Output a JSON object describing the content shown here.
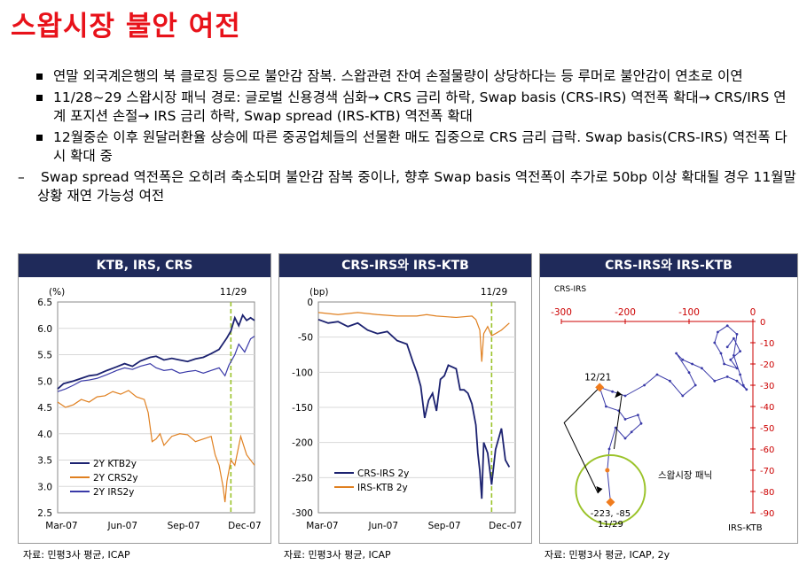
{
  "slide": {
    "title": "스왑시장 불안 여전",
    "bullets": [
      {
        "type": "square",
        "text": "연말 외국계은행의 북 클로징 등으로 불안감 잠복. 스왑관련 잔여 손절물량이 상당하다는 등 루머로 불안감이 연초로 이연"
      },
      {
        "type": "square",
        "text": "11/28~29 스왑시장 패닉 경로: 글로벌 신용경색 심화→ CRS 금리 하락, Swap basis (CRS-IRS) 역전폭 확대→ CRS/IRS 연계 포지션 손절→ IRS 금리 하락, Swap spread (IRS-KTB) 역전폭 확대"
      },
      {
        "type": "square",
        "text": "12월중순 이후 원달러환율 상승에 따른 중공업체들의 선물환 매도 집중으로 CRS 금리 급락. Swap basis(CRS-IRS) 역전폭 다시 확대 중"
      },
      {
        "type": "dash",
        "text": "Swap spread 역전폭은 오히려 축소되며 불안감 잠복 중이나, 향후 Swap basis 역전폭이 추가로 50bp 이상 확대될 경우 11월말 상황 재연 가능성 여전"
      }
    ]
  },
  "sources": [
    "자료: 민평3사 평균, ICAP",
    "자료: 민평3사 평균, ICAP",
    "자료: 민평3사 평균, ICAP, 2y"
  ],
  "chart_data": [
    {
      "type": "line",
      "title": "KTB, IRS, CRS",
      "unit_label": "(%)",
      "marker_label": "11/29",
      "ylim": [
        2.5,
        6.5
      ],
      "yticks": [
        "6.5",
        "6.0",
        "5.5",
        "5.0",
        "4.5",
        "4.0",
        "3.5",
        "3.0",
        "2.5"
      ],
      "xlabels": [
        "Mar-07",
        "Jun-07",
        "Sep-07",
        "Dec-07"
      ],
      "series": [
        {
          "name": "2Y KTB2y",
          "color": "#1c2270",
          "values": [
            [
              0,
              4.85
            ],
            [
              0.03,
              4.95
            ],
            [
              0.08,
              5.0
            ],
            [
              0.12,
              5.05
            ],
            [
              0.16,
              5.1
            ],
            [
              0.2,
              5.12
            ],
            [
              0.25,
              5.2
            ],
            [
              0.3,
              5.27
            ],
            [
              0.34,
              5.33
            ],
            [
              0.38,
              5.28
            ],
            [
              0.42,
              5.38
            ],
            [
              0.47,
              5.45
            ],
            [
              0.5,
              5.47
            ],
            [
              0.54,
              5.4
            ],
            [
              0.58,
              5.43
            ],
            [
              0.62,
              5.4
            ],
            [
              0.66,
              5.37
            ],
            [
              0.7,
              5.42
            ],
            [
              0.74,
              5.45
            ],
            [
              0.78,
              5.52
            ],
            [
              0.82,
              5.6
            ],
            [
              0.86,
              5.82
            ],
            [
              0.88,
              5.95
            ],
            [
              0.9,
              6.2
            ],
            [
              0.92,
              6.05
            ],
            [
              0.94,
              6.25
            ],
            [
              0.96,
              6.15
            ],
            [
              0.98,
              6.2
            ],
            [
              1.0,
              6.15
            ]
          ]
        },
        {
          "name": "2Y CRS2y",
          "color": "#e08020",
          "values": [
            [
              0,
              4.6
            ],
            [
              0.04,
              4.5
            ],
            [
              0.08,
              4.55
            ],
            [
              0.12,
              4.65
            ],
            [
              0.16,
              4.6
            ],
            [
              0.2,
              4.7
            ],
            [
              0.24,
              4.72
            ],
            [
              0.28,
              4.8
            ],
            [
              0.32,
              4.75
            ],
            [
              0.36,
              4.82
            ],
            [
              0.4,
              4.7
            ],
            [
              0.44,
              4.65
            ],
            [
              0.46,
              4.4
            ],
            [
              0.48,
              3.85
            ],
            [
              0.5,
              3.9
            ],
            [
              0.52,
              4.0
            ],
            [
              0.54,
              3.78
            ],
            [
              0.58,
              3.95
            ],
            [
              0.62,
              4.0
            ],
            [
              0.66,
              3.98
            ],
            [
              0.7,
              3.85
            ],
            [
              0.74,
              3.9
            ],
            [
              0.78,
              3.95
            ],
            [
              0.8,
              3.6
            ],
            [
              0.82,
              3.4
            ],
            [
              0.84,
              3.0
            ],
            [
              0.85,
              2.7
            ],
            [
              0.86,
              3.1
            ],
            [
              0.88,
              3.5
            ],
            [
              0.9,
              3.4
            ],
            [
              0.93,
              3.95
            ],
            [
              0.96,
              3.6
            ],
            [
              1.0,
              3.4
            ]
          ]
        },
        {
          "name": "2Y IRS2y",
          "color": "#3a3aa8",
          "values": [
            [
              0,
              4.8
            ],
            [
              0.04,
              4.85
            ],
            [
              0.08,
              4.92
            ],
            [
              0.12,
              5.0
            ],
            [
              0.16,
              5.02
            ],
            [
              0.2,
              5.05
            ],
            [
              0.25,
              5.12
            ],
            [
              0.3,
              5.2
            ],
            [
              0.34,
              5.25
            ],
            [
              0.38,
              5.22
            ],
            [
              0.42,
              5.28
            ],
            [
              0.47,
              5.33
            ],
            [
              0.5,
              5.25
            ],
            [
              0.54,
              5.2
            ],
            [
              0.58,
              5.22
            ],
            [
              0.62,
              5.15
            ],
            [
              0.66,
              5.18
            ],
            [
              0.7,
              5.2
            ],
            [
              0.74,
              5.15
            ],
            [
              0.78,
              5.2
            ],
            [
              0.82,
              5.25
            ],
            [
              0.85,
              5.1
            ],
            [
              0.87,
              5.3
            ],
            [
              0.9,
              5.5
            ],
            [
              0.92,
              5.7
            ],
            [
              0.95,
              5.55
            ],
            [
              0.98,
              5.8
            ],
            [
              1.0,
              5.85
            ]
          ]
        }
      ]
    },
    {
      "type": "line",
      "title": "CRS-IRS와 IRS-KTB",
      "unit_label": "(bp)",
      "marker_label": "11/29",
      "ylim": [
        -300,
        0
      ],
      "yticks": [
        "0",
        "-50",
        "-100",
        "-150",
        "-200",
        "-250",
        "-300"
      ],
      "xlabels": [
        "Mar-07",
        "Jun-07",
        "Sep-07",
        "Dec-07"
      ],
      "series": [
        {
          "name": "CRS-IRS 2y",
          "color": "#1c2270",
          "values": [
            [
              0,
              -25
            ],
            [
              0.05,
              -30
            ],
            [
              0.1,
              -28
            ],
            [
              0.15,
              -35
            ],
            [
              0.2,
              -30
            ],
            [
              0.25,
              -40
            ],
            [
              0.3,
              -45
            ],
            [
              0.35,
              -42
            ],
            [
              0.4,
              -55
            ],
            [
              0.45,
              -60
            ],
            [
              0.48,
              -85
            ],
            [
              0.5,
              -100
            ],
            [
              0.52,
              -120
            ],
            [
              0.54,
              -165
            ],
            [
              0.56,
              -140
            ],
            [
              0.58,
              -130
            ],
            [
              0.6,
              -155
            ],
            [
              0.62,
              -110
            ],
            [
              0.64,
              -105
            ],
            [
              0.66,
              -90
            ],
            [
              0.7,
              -95
            ],
            [
              0.72,
              -125
            ],
            [
              0.74,
              -125
            ],
            [
              0.76,
              -130
            ],
            [
              0.78,
              -145
            ],
            [
              0.8,
              -175
            ],
            [
              0.81,
              -215
            ],
            [
              0.82,
              -240
            ],
            [
              0.83,
              -280
            ],
            [
              0.84,
              -200
            ],
            [
              0.86,
              -215
            ],
            [
              0.88,
              -260
            ],
            [
              0.9,
              -210
            ],
            [
              0.93,
              -180
            ],
            [
              0.95,
              -225
            ],
            [
              0.97,
              -235
            ]
          ]
        },
        {
          "name": "IRS-KTB 2y",
          "color": "#e08020",
          "values": [
            [
              0,
              -15
            ],
            [
              0.1,
              -18
            ],
            [
              0.2,
              -15
            ],
            [
              0.3,
              -18
            ],
            [
              0.4,
              -20
            ],
            [
              0.5,
              -20
            ],
            [
              0.55,
              -18
            ],
            [
              0.6,
              -20
            ],
            [
              0.7,
              -22
            ],
            [
              0.78,
              -20
            ],
            [
              0.8,
              -25
            ],
            [
              0.82,
              -40
            ],
            [
              0.83,
              -85
            ],
            [
              0.84,
              -45
            ],
            [
              0.86,
              -35
            ],
            [
              0.88,
              -48
            ],
            [
              0.9,
              -45
            ],
            [
              0.93,
              -40
            ],
            [
              0.97,
              -30
            ]
          ]
        }
      ]
    },
    {
      "type": "scatter",
      "title": "CRS-IRS와 IRS-KTB",
      "xlabel": "CRS-IRS",
      "ylabel": "IRS-KTB",
      "xlim": [
        -300,
        0
      ],
      "ylim": [
        -90,
        0
      ],
      "xticks": [
        "-300",
        "-200",
        "-100",
        "0"
      ],
      "yticks": [
        "0",
        "-10",
        "-20",
        "-30",
        "-40",
        "-50",
        "-60",
        "-70",
        "-80",
        "-90"
      ],
      "annotations": [
        {
          "label": "12/21",
          "x": -240,
          "y": -31
        },
        {
          "label": "-223, -85",
          "sub": "11/29",
          "x": -223,
          "y": -85
        },
        {
          "label": "스왑시장 패닉",
          "x": -120,
          "y": -72
        }
      ],
      "values": [
        [
          -40,
          -12
        ],
        [
          -30,
          -8
        ],
        [
          -20,
          -14
        ],
        [
          -35,
          -18
        ],
        [
          -25,
          -22
        ],
        [
          -45,
          -20
        ],
        [
          -50,
          -15
        ],
        [
          -60,
          -10
        ],
        [
          -55,
          -5
        ],
        [
          -40,
          -2
        ],
        [
          -25,
          -6
        ],
        [
          -30,
          -16
        ],
        [
          -20,
          -25
        ],
        [
          -15,
          -30
        ],
        [
          -10,
          -32
        ],
        [
          -25,
          -28
        ],
        [
          -40,
          -26
        ],
        [
          -60,
          -28
        ],
        [
          -80,
          -22
        ],
        [
          -95,
          -20
        ],
        [
          -110,
          -18
        ],
        [
          -120,
          -15
        ],
        [
          -100,
          -24
        ],
        [
          -90,
          -30
        ],
        [
          -110,
          -35
        ],
        [
          -130,
          -28
        ],
        [
          -150,
          -25
        ],
        [
          -170,
          -30
        ],
        [
          -200,
          -35
        ],
        [
          -220,
          -33
        ],
        [
          -240,
          -31
        ],
        [
          -230,
          -40
        ],
        [
          -210,
          -42
        ],
        [
          -200,
          -46
        ],
        [
          -180,
          -44
        ],
        [
          -175,
          -48
        ],
        [
          -190,
          -52
        ],
        [
          -200,
          -55
        ],
        [
          -215,
          -50
        ],
        [
          -225,
          -60
        ],
        [
          -228,
          -70
        ],
        [
          -223,
          -85
        ]
      ]
    }
  ]
}
